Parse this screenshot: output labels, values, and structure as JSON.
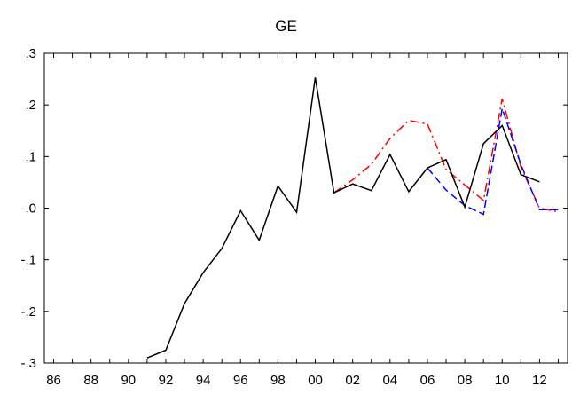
{
  "chart_data": {
    "type": "line",
    "title": "GE",
    "xlabel": "",
    "ylabel": "",
    "xlim": [
      1985.5,
      2013.5
    ],
    "ylim": [
      -0.3,
      0.3
    ],
    "x_ticks": [
      1986,
      1988,
      1990,
      1992,
      1994,
      1996,
      1998,
      2000,
      2002,
      2004,
      2006,
      2008,
      2010,
      2012
    ],
    "x_tick_labels": [
      "86",
      "88",
      "90",
      "92",
      "94",
      "96",
      "98",
      "00",
      "02",
      "04",
      "06",
      "08",
      "10",
      "12"
    ],
    "y_ticks": [
      -0.3,
      -0.2,
      -0.1,
      0.0,
      0.1,
      0.2,
      0.3
    ],
    "y_tick_labels": [
      "-.3",
      "-.2",
      "-.1",
      ".0",
      ".1",
      ".2",
      ".3"
    ],
    "grid": false,
    "legend": "none",
    "series": [
      {
        "color": "#ff0000",
        "style": "dashdot",
        "x": [
          2001,
          2002,
          2003,
          2004,
          2005,
          2006,
          2007,
          2008,
          2009,
          2010,
          2011,
          2012,
          2013
        ],
        "values": [
          0.03,
          0.055,
          0.085,
          0.135,
          0.17,
          0.163,
          0.075,
          0.045,
          0.015,
          0.212,
          0.08,
          0.0,
          -0.007
        ]
      },
      {
        "color": "#0000ff",
        "style": "dashed",
        "x": [
          2006,
          2007,
          2008,
          2009,
          2010,
          2011,
          2012,
          2013
        ],
        "values": [
          0.078,
          0.035,
          0.005,
          -0.012,
          0.193,
          0.085,
          -0.003,
          -0.003
        ]
      },
      {
        "color": "#000000",
        "style": "solid",
        "x": [
          1991,
          1992,
          1993,
          1994,
          1995,
          1996,
          1997,
          1998,
          1999,
          2000,
          2001,
          2002,
          2003,
          2004,
          2005,
          2006,
          2007,
          2008,
          2009,
          2010,
          2011,
          2012
        ],
        "values": [
          -0.29,
          -0.275,
          -0.185,
          -0.125,
          -0.078,
          -0.005,
          -0.062,
          0.043,
          -0.008,
          0.253,
          0.03,
          0.047,
          0.034,
          0.104,
          0.032,
          0.078,
          0.094,
          0.002,
          0.125,
          0.16,
          0.065,
          0.051
        ]
      }
    ]
  }
}
